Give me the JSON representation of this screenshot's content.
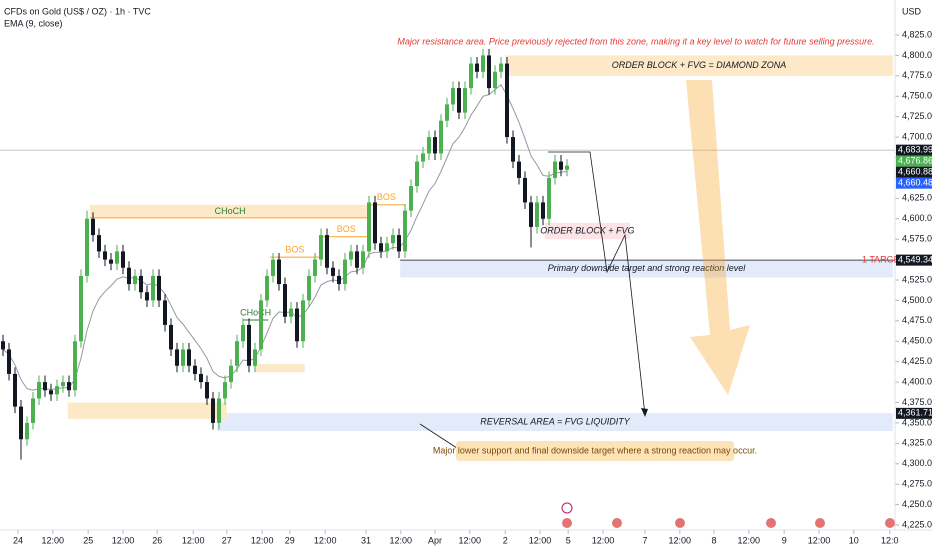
{
  "chart_data": {
    "type": "candlestick",
    "title": "CFDs on Gold (US$ / OZ) · 1h · TVC",
    "indicator_label": "EMA (9, close)",
    "currency": "USD",
    "up_color": "#4caf50",
    "down_color": "#131722",
    "ema_color": "#9598a1",
    "xlim": [
      0,
      149
    ],
    "ylim": [
      4225,
      4825
    ],
    "yticks": [
      {
        "value": 4225,
        "label": "4,225.000"
      },
      {
        "value": 4250,
        "label": "4,250.000"
      },
      {
        "value": 4275,
        "label": "4,275.000"
      },
      {
        "value": 4300,
        "label": "4,300.000"
      },
      {
        "value": 4325,
        "label": "4,325.000"
      },
      {
        "value": 4350,
        "label": "4,350.000"
      },
      {
        "value": 4375,
        "label": "4,375.000"
      },
      {
        "value": 4400,
        "label": "4,400.000"
      },
      {
        "value": 4425,
        "label": "4,425.000"
      },
      {
        "value": 4450,
        "label": "4,450.000"
      },
      {
        "value": 4475,
        "label": "4,475.000"
      },
      {
        "value": 4500,
        "label": "4,500.000"
      },
      {
        "value": 4525,
        "label": "4,525.000"
      },
      {
        "value": 4550,
        "label": "4,550.000"
      },
      {
        "value": 4575,
        "label": "4,575.000"
      },
      {
        "value": 4600,
        "label": "4,600.000"
      },
      {
        "value": 4625,
        "label": "4,625.000"
      },
      {
        "value": 4650,
        "label": "4,650.000"
      },
      {
        "value": 4675,
        "label": "4,675.000"
      },
      {
        "value": 4700,
        "label": "4,700.000"
      },
      {
        "value": 4725,
        "label": "4,725.000"
      },
      {
        "value": 4750,
        "label": "4,750.000"
      },
      {
        "value": 4775,
        "label": "4,775.000"
      },
      {
        "value": 4800,
        "label": "4,800.000"
      },
      {
        "value": 4825,
        "label": "4,825.000"
      }
    ],
    "xticks": [
      {
        "value": 2.5,
        "label": "24"
      },
      {
        "value": 8.3,
        "label": "12:00"
      },
      {
        "value": 14.2,
        "label": "25"
      },
      {
        "value": 20,
        "label": "12:00"
      },
      {
        "value": 25.7,
        "label": "26"
      },
      {
        "value": 31.7,
        "label": "12:00"
      },
      {
        "value": 37.3,
        "label": "27"
      },
      {
        "value": 43.2,
        "label": "12:00"
      },
      {
        "value": 47.8,
        "label": "29"
      },
      {
        "value": 53.7,
        "label": "12:00"
      },
      {
        "value": 60.5,
        "label": "31"
      },
      {
        "value": 66.3,
        "label": "12:00"
      },
      {
        "value": 72,
        "label": "Apr"
      },
      {
        "value": 77.8,
        "label": "12:00"
      },
      {
        "value": 83.7,
        "label": "2"
      },
      {
        "value": 89.5,
        "label": "12:00"
      },
      {
        "value": 94.2,
        "label": "5"
      },
      {
        "value": 100,
        "label": "12:00"
      },
      {
        "value": 107,
        "label": "7"
      },
      {
        "value": 112.8,
        "label": "12:00"
      },
      {
        "value": 118.5,
        "label": "8"
      },
      {
        "value": 124.3,
        "label": "12:00"
      },
      {
        "value": 130.2,
        "label": "9"
      },
      {
        "value": 136,
        "label": "12:00"
      },
      {
        "value": 141.8,
        "label": "10"
      },
      {
        "value": 147.8,
        "label": "12:0"
      }
    ],
    "open": [
      4450,
      4440,
      4410,
      4370,
      4330,
      4350,
      4380,
      4400,
      4390,
      4385,
      4395,
      4400,
      4390,
      4450,
      4530,
      4600,
      4580,
      4560,
      4550,
      4545,
      4560,
      4540,
      4520,
      4530,
      4510,
      4500,
      4530,
      4500,
      4470,
      4440,
      4420,
      4440,
      4420,
      4410,
      4400,
      4380,
      4350,
      4380,
      4400,
      4420,
      4450,
      4470,
      4420,
      4440,
      4500,
      4530,
      4550,
      4520,
      4480,
      4490,
      4450,
      4500,
      4530,
      4550,
      4580,
      4540,
      4530,
      4520,
      4550,
      4560,
      4540,
      4560,
      4620,
      4570,
      4560,
      4570,
      4580,
      4560,
      4610,
      4640,
      4670,
      4680,
      4700,
      4680,
      4720,
      4740,
      4760,
      4730,
      4760,
      4790,
      4780,
      4800,
      4760,
      4780,
      4790,
      4700,
      4670,
      4650,
      4620,
      4590,
      4620,
      4600,
      4650,
      4670,
      4660
    ],
    "high": [
      4458,
      4448,
      4418,
      4378,
      4358,
      4388,
      4408,
      4408,
      4398,
      4403,
      4408,
      4408,
      4458,
      4538,
      4610,
      4608,
      4588,
      4568,
      4558,
      4568,
      4568,
      4548,
      4538,
      4538,
      4518,
      4538,
      4538,
      4508,
      4478,
      4448,
      4448,
      4448,
      4428,
      4418,
      4408,
      4388,
      4388,
      4408,
      4428,
      4458,
      4478,
      4478,
      4448,
      4508,
      4538,
      4558,
      4558,
      4528,
      4498,
      4498,
      4508,
      4538,
      4558,
      4588,
      4588,
      4548,
      4538,
      4558,
      4568,
      4568,
      4568,
      4628,
      4628,
      4578,
      4578,
      4588,
      4588,
      4618,
      4648,
      4678,
      4688,
      4708,
      4708,
      4728,
      4748,
      4768,
      4768,
      4768,
      4798,
      4798,
      4808,
      4808,
      4788,
      4798,
      4798,
      4708,
      4678,
      4658,
      4628,
      4628,
      4628,
      4658,
      4678,
      4678,
      4673
    ],
    "low": [
      4432,
      4402,
      4362,
      4305,
      4322,
      4342,
      4372,
      4382,
      4377,
      4377,
      4387,
      4382,
      4382,
      4442,
      4522,
      4572,
      4552,
      4542,
      4537,
      4537,
      4532,
      4512,
      4512,
      4502,
      4492,
      4492,
      4492,
      4462,
      4432,
      4412,
      4412,
      4412,
      4402,
      4392,
      4372,
      4342,
      4342,
      4372,
      4392,
      4412,
      4442,
      4412,
      4412,
      4432,
      4492,
      4522,
      4512,
      4472,
      4472,
      4442,
      4442,
      4492,
      4522,
      4542,
      4532,
      4522,
      4512,
      4512,
      4542,
      4532,
      4532,
      4552,
      4562,
      4552,
      4552,
      4562,
      4552,
      4552,
      4602,
      4632,
      4662,
      4672,
      4672,
      4672,
      4712,
      4732,
      4722,
      4722,
      4752,
      4772,
      4772,
      4752,
      4752,
      4772,
      4692,
      4662,
      4642,
      4612,
      4565,
      4582,
      4592,
      4592,
      4642,
      4652,
      4652
    ],
    "close": [
      4440,
      4410,
      4370,
      4330,
      4350,
      4380,
      4400,
      4390,
      4385,
      4395,
      4400,
      4390,
      4450,
      4530,
      4600,
      4580,
      4560,
      4550,
      4545,
      4560,
      4540,
      4520,
      4530,
      4510,
      4500,
      4530,
      4500,
      4470,
      4440,
      4420,
      4440,
      4420,
      4410,
      4400,
      4380,
      4350,
      4380,
      4400,
      4420,
      4450,
      4470,
      4420,
      4440,
      4500,
      4530,
      4550,
      4520,
      4480,
      4490,
      4450,
      4500,
      4530,
      4550,
      4580,
      4540,
      4530,
      4520,
      4550,
      4560,
      4540,
      4560,
      4620,
      4570,
      4560,
      4570,
      4580,
      4560,
      4610,
      4640,
      4670,
      4680,
      4700,
      4680,
      4720,
      4740,
      4760,
      4730,
      4760,
      4790,
      4780,
      4800,
      4760,
      4780,
      4790,
      4700,
      4670,
      4650,
      4620,
      4590,
      4620,
      4600,
      4650,
      4670,
      4660,
      4665
    ],
    "ema": [
      4440,
      4434,
      4421,
      4403,
      4392,
      4390,
      4392,
      4392,
      4391,
      4392,
      4393,
      4393,
      4404,
      4429,
      4463,
      4487,
      4502,
      4511,
      4518,
      4526,
      4529,
      4527,
      4528,
      4524,
      4519,
      4521,
      4517,
      4508,
      4494,
      4479,
      4471,
      4461,
      4451,
      4441,
      4429,
      4413,
      4407,
      4405,
      4408,
      4416,
      4427,
      4426,
      4429,
      4443,
      4460,
      4478,
      4486,
      4485,
      4486,
      4479,
      4483,
      4492,
      4504,
      4519,
      4523,
      4525,
      4524,
      4529,
      4535,
      4536,
      4541,
      4557,
      4559,
      4559,
      4561,
      4565,
      4564,
      4573,
      4586,
      4603,
      4618,
      4634,
      4643,
      4658,
      4675,
      4692,
      4700,
      4712,
      4727,
      4738,
      4750,
      4752,
      4758,
      4764,
      4751,
      4735,
      4718,
      4698,
      4677,
      4666,
      4653,
      4652,
      4656,
      4657,
      4658
    ],
    "zones": [
      {
        "label": "ORDER BLOCK + FVG =  DIAMOND ZONA",
        "top": 4800,
        "bottom": 4775,
        "x_start": 83.7,
        "x_end": 148.3,
        "color": "#fde9c8"
      },
      {
        "label": "ORDER BLOCK + FVG",
        "top": 4595,
        "bottom": 4575,
        "x_start": 90.3,
        "x_end": 104.5,
        "color": "#fce4e6"
      },
      {
        "label": "Primary downside target and strong reaction level",
        "top": 4550,
        "bottom": 4528,
        "x_start": 66.2,
        "x_end": 148.3,
        "color": "#e3eafa"
      },
      {
        "label": "REVERSAL AREA = FVG LIQUIDITY",
        "top": 4362,
        "bottom": 4340,
        "x_start": 35.7,
        "x_end": 148.3,
        "color": "#e3eafa"
      },
      {
        "label": "CHoCH",
        "top": 4617,
        "bottom": 4601,
        "x_start": 14.5,
        "x_end": 61.2,
        "color": "#fde9c8"
      },
      {
        "top": 4375,
        "bottom": 4355,
        "x_start": 10.8,
        "x_end": 37.3,
        "color": "#fde9c8"
      },
      {
        "top": 4422,
        "bottom": 4412,
        "x_start": 42,
        "x_end": 50.3,
        "color": "#fde9c8"
      }
    ],
    "structure": [
      {
        "label": "CHoCH",
        "price": 4476,
        "x_start": 40,
        "x_end": 44.2,
        "color": "#2e7d32"
      },
      {
        "label": "BOS",
        "price": 4553,
        "x_start": 44.5,
        "x_end": 52.8,
        "color": "#f7a325"
      },
      {
        "label": "BOS",
        "price": 4578,
        "x_start": 53.2,
        "x_end": 61.2,
        "color": "#f7a325"
      },
      {
        "label": "BOS",
        "price": 4617,
        "x_start": 60.8,
        "x_end": 67,
        "color": "#f7a325"
      }
    ],
    "target": {
      "label": "1 TARGET",
      "price": 4549.341,
      "x_start": 66.2
    },
    "current_line": 4683.995,
    "price_labels": [
      {
        "value": 4683.995,
        "label": "4,683.995",
        "color": "#131722"
      },
      {
        "value": 4676.86,
        "label": "4,676.860",
        "color": "#4caf50"
      },
      {
        "value": 4660.886,
        "label": "4,660.886",
        "color": "#131722"
      },
      {
        "value": 4660.487,
        "label": "4,660.487",
        "color": "#2962ff"
      },
      {
        "value": 4549.341,
        "label": "4,549.341",
        "color": "#131722"
      },
      {
        "value": 4361.713,
        "label": "4,361.713",
        "color": "#131722"
      }
    ],
    "notes": [
      {
        "text": "Major resistance area. Price previously rejected from this zone, making it a key level to watch for future selling pressure."
      },
      {
        "text": "Major lower support and final downside target where a strong reaction may occur."
      }
    ]
  }
}
